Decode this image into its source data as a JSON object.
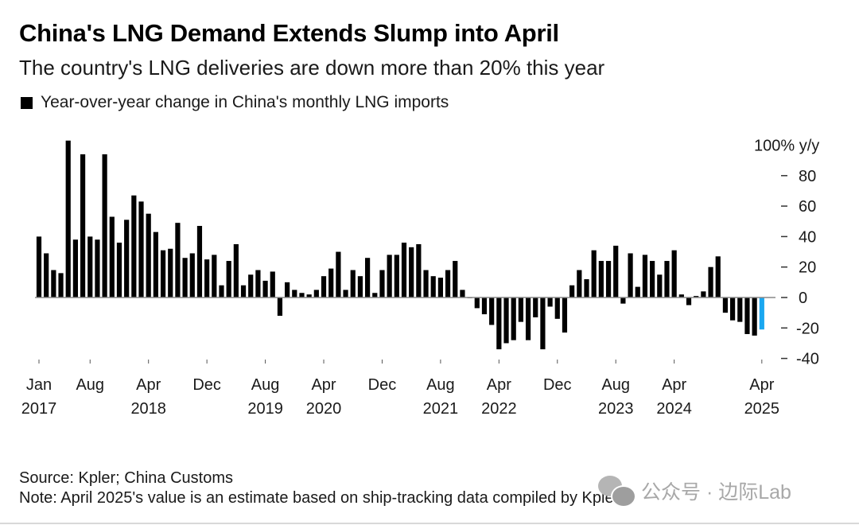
{
  "header": {
    "title": "China's LNG Demand Extends Slump into April",
    "subtitle": "The country's LNG deliveries are down more than 20% this year",
    "legend_label": "Year-over-year change in China's monthly LNG imports"
  },
  "footer": {
    "source": "Source: Kpler; China Customs",
    "note": "Note: April 2025's value is an estimate based on ship-tracking data compiled by Kpler",
    "watermark": "公众号 · 边际Lab"
  },
  "colors": {
    "bar": "#000000",
    "highlight": "#1aa7f0",
    "axis": "#888888",
    "text": "#1a1a1a"
  },
  "chart_data": {
    "type": "bar",
    "title": "China's LNG Demand Extends Slump into April",
    "subtitle": "The country's LNG deliveries are down more than 20% this year",
    "legend": [
      "Year-over-year change in China's monthly LNG imports"
    ],
    "legend_position": "top-left",
    "ylabel": "% y/y",
    "y_axis_unit_label": "100% y/y",
    "y_axis_position": "right",
    "ylim": [
      -40,
      100
    ],
    "yticks": [
      100,
      80,
      60,
      40,
      20,
      0,
      -20,
      -40
    ],
    "ytick_labels": [
      "100% y/y",
      "80",
      "60",
      "40",
      "20",
      "0",
      "-20",
      "-40"
    ],
    "grid": false,
    "start": "2017-01",
    "end": "2025-04",
    "highlight_last": true,
    "highlight_note": "April 2025 value is an estimate",
    "xtick_labels": [
      {
        "index": 0,
        "month": "Jan",
        "year": "2017"
      },
      {
        "index": 7,
        "month": "Aug",
        "year": ""
      },
      {
        "index": 15,
        "month": "Apr",
        "year": "2018"
      },
      {
        "index": 23,
        "month": "Dec",
        "year": ""
      },
      {
        "index": 31,
        "month": "Aug",
        "year": "2019"
      },
      {
        "index": 39,
        "month": "Apr",
        "year": "2020"
      },
      {
        "index": 47,
        "month": "Dec",
        "year": ""
      },
      {
        "index": 55,
        "month": "Aug",
        "year": "2021"
      },
      {
        "index": 63,
        "month": "Apr",
        "year": "2022"
      },
      {
        "index": 71,
        "month": "Dec",
        "year": ""
      },
      {
        "index": 79,
        "month": "Aug",
        "year": "2023"
      },
      {
        "index": 87,
        "month": "Apr",
        "year": "2024"
      },
      {
        "index": 99,
        "month": "Apr",
        "year": "2025"
      }
    ],
    "values": [
      40,
      29,
      18,
      16,
      103,
      38,
      94,
      40,
      38,
      94,
      53,
      36,
      51,
      67,
      63,
      55,
      43,
      31,
      32,
      49,
      26,
      29,
      47,
      25,
      28,
      8,
      24,
      35,
      8,
      15,
      18,
      11,
      17,
      -12,
      10,
      5,
      3,
      2,
      5,
      14,
      19,
      30,
      5,
      18,
      14,
      26,
      3,
      18,
      28,
      28,
      36,
      33,
      35,
      18,
      14,
      13,
      18,
      24,
      5,
      0,
      -7,
      -11,
      -18,
      -34,
      -30,
      -28,
      -16,
      -28,
      -13,
      -34,
      -6,
      -14,
      -23,
      8,
      18,
      12,
      31,
      24,
      24,
      34,
      -4,
      29,
      7,
      28,
      24,
      15,
      24,
      31,
      2,
      -5,
      1,
      4,
      20,
      27,
      -10,
      -15,
      -16,
      -24,
      -25,
      -21
    ]
  }
}
